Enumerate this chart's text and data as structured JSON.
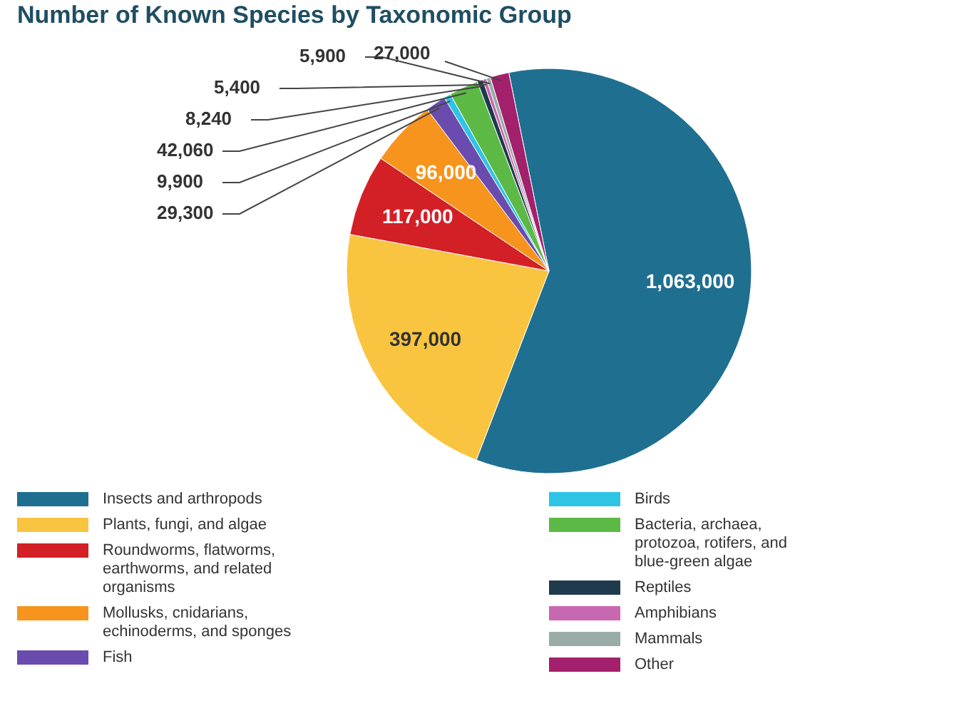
{
  "chart_data": {
    "type": "pie",
    "title": "Number of Known Species by Taxonomic Group",
    "categories": [
      "Insects and arthropods",
      "Plants, fungi, and algae",
      "Roundworms, flatworms, earthworms, and related organisms",
      "Mollusks, cnidarians, echinoderms, and sponges",
      "Fish",
      "Birds",
      "Bacteria, archaea, protozoa, rotifers, and blue-green algae",
      "Reptiles",
      "Amphibians",
      "Mammals",
      "Other"
    ],
    "values": [
      1063000,
      397000,
      117000,
      96000,
      29300,
      9900,
      42060,
      8240,
      5400,
      5900,
      27000
    ],
    "colors": [
      "#1f6f91",
      "#f9c440",
      "#d32027",
      "#f7941d",
      "#6a4cae",
      "#2ec4e6",
      "#5cb946",
      "#1e3a4c",
      "#c868b0",
      "#9aaca8",
      "#a3206c"
    ],
    "value_labels": [
      "1,063,000",
      "397,000",
      "117,000",
      "96,000",
      "29,300",
      "9,900",
      "42,060",
      "8,240",
      "5,400",
      "5,900",
      "27,000"
    ],
    "legend": "bottom"
  }
}
